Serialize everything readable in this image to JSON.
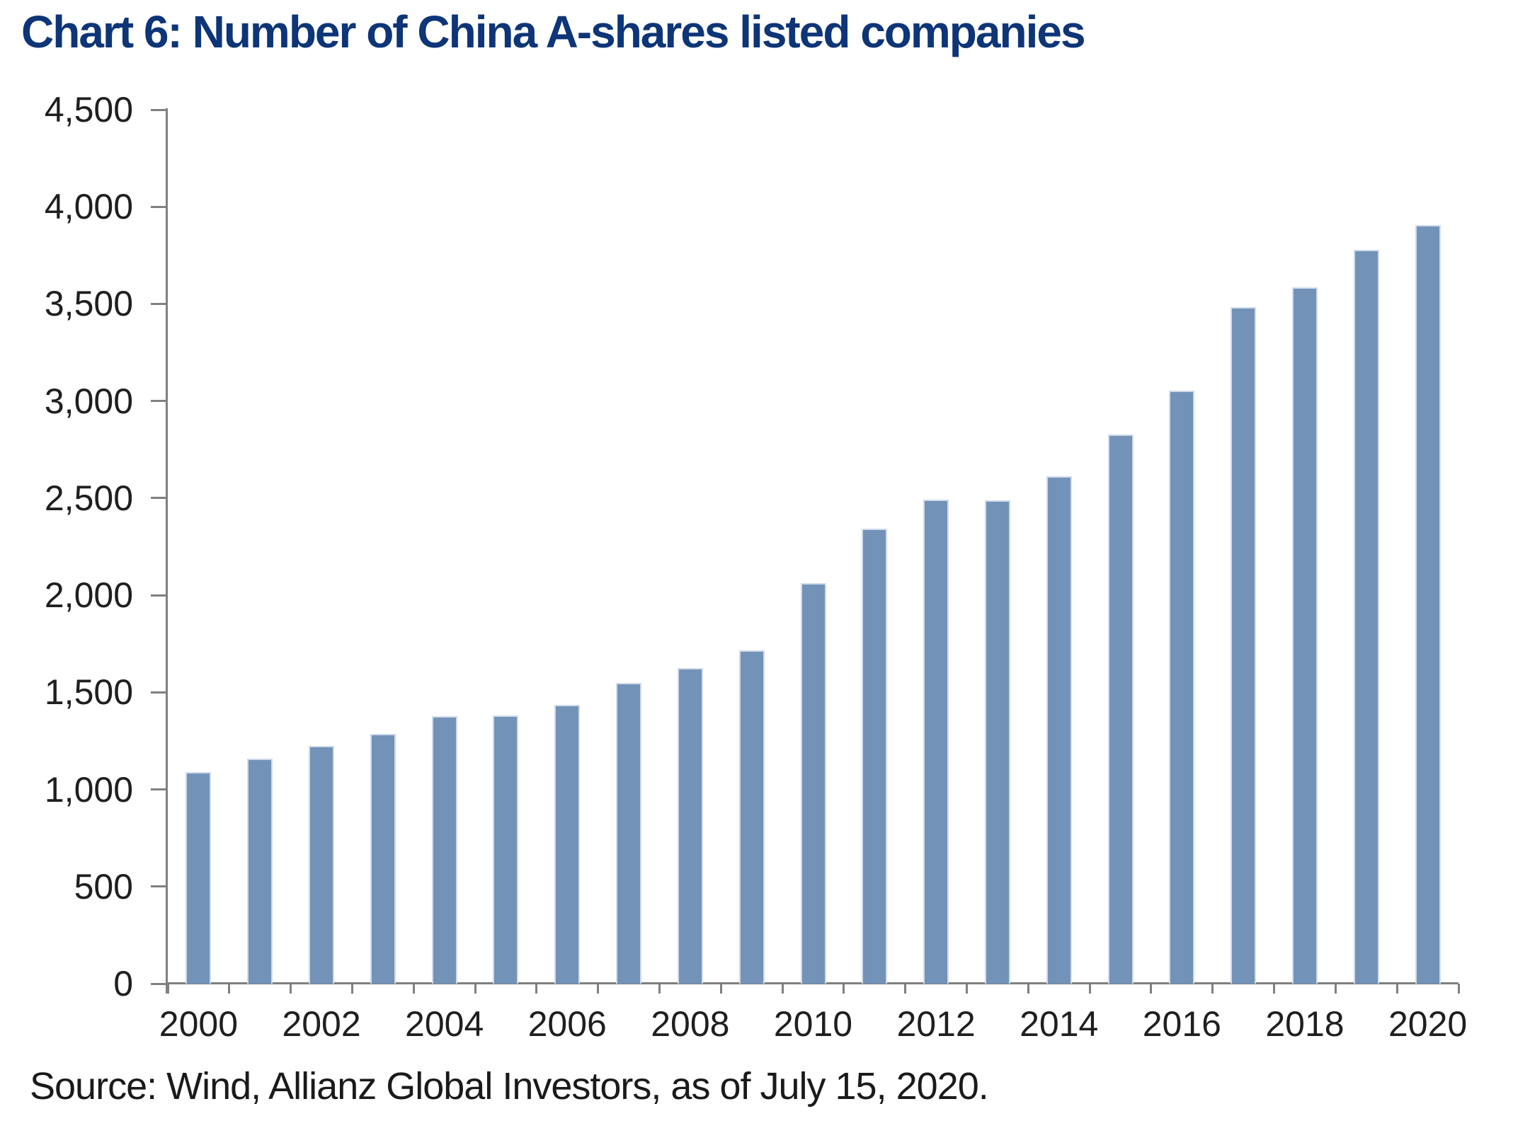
{
  "page": {
    "background": "#ffffff"
  },
  "title": {
    "text": "Chart 6: Number of China A-shares listed companies",
    "color": "#0d3577"
  },
  "source_note": "Source: Wind, Allianz Global Investors, as of July 15, 2020.",
  "chart_data": {
    "type": "bar",
    "title": "Chart 6: Number of China A-shares listed companies",
    "categories": [
      2000,
      2001,
      2002,
      2003,
      2004,
      2005,
      2006,
      2007,
      2008,
      2009,
      2010,
      2011,
      2012,
      2013,
      2014,
      2015,
      2016,
      2017,
      2018,
      2019,
      2020
    ],
    "values": [
      1088,
      1160,
      1224,
      1287,
      1377,
      1381,
      1434,
      1550,
      1625,
      1718,
      2063,
      2342,
      2494,
      2489,
      2613,
      2827,
      3052,
      3485,
      3584,
      3777,
      3907
    ],
    "series_name": "Number of China A-shares listed companies",
    "xlabel": "",
    "ylabel": "",
    "ylim": [
      0,
      4500
    ],
    "y_tick_interval": 500,
    "y_tick_labels": [
      "0",
      "500",
      "1,000",
      "1,500",
      "2,000",
      "2,500",
      "3,000",
      "3,500",
      "4,000",
      "4,500"
    ],
    "x_tick_labels_visible": [
      "2000",
      "2002",
      "2004",
      "2006",
      "2008",
      "2010",
      "2012",
      "2014",
      "2016",
      "2018",
      "2020"
    ],
    "x_label_every": 2,
    "grid": false,
    "legend": "none",
    "bar_color": "#7392b8",
    "bar_border_color": "#cfdbec",
    "axis_color": "#808080",
    "tick_label_color": "#1f1f1f"
  }
}
